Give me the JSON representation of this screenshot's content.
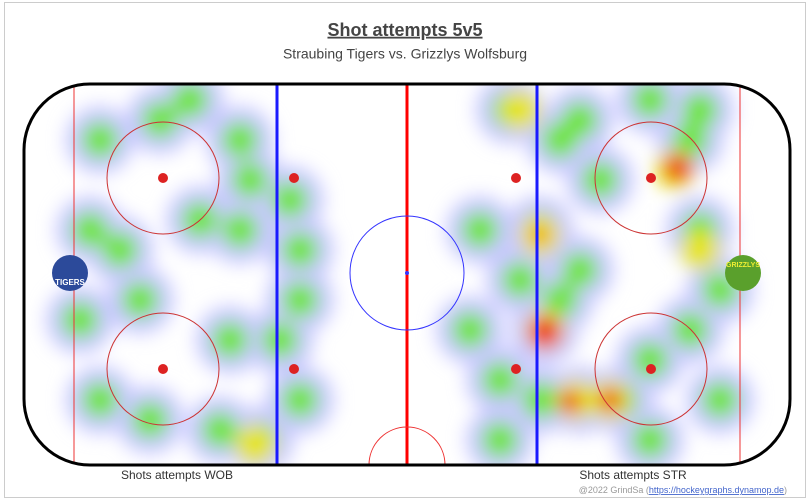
{
  "header": {
    "title": "Shot attempts 5v5",
    "subtitle": "Straubing Tigers vs. Grizzlys Wolfsburg"
  },
  "logos": {
    "left": "TIGERS",
    "right": "GRIZZLYS"
  },
  "labels": {
    "left": "Shots attempts WOB",
    "right": "Shots attempts STR"
  },
  "credit": {
    "prefix": "@2022 GrindSa (",
    "link": "https://hockeygraphs.dynamop.de",
    "suffix": ")"
  }
}
